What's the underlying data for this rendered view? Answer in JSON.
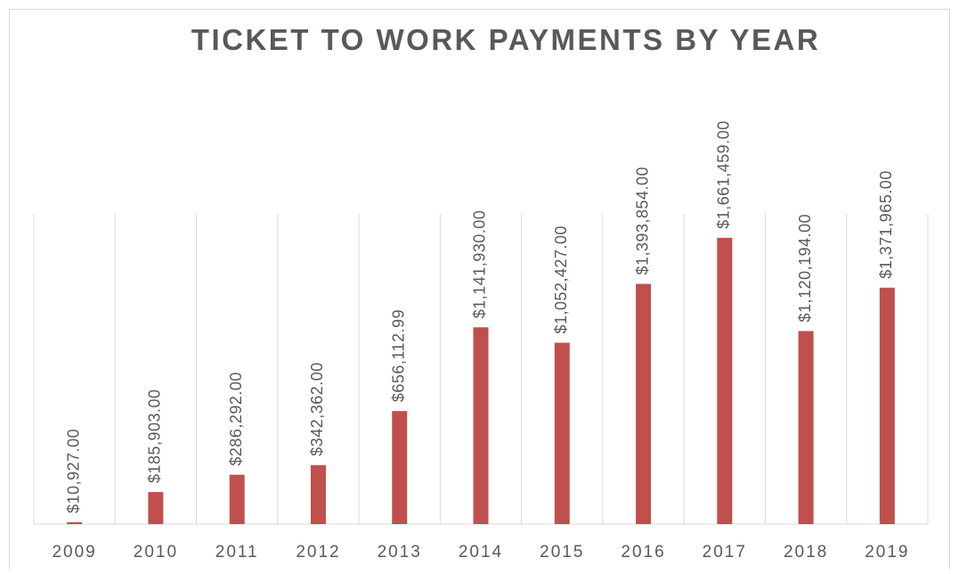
{
  "chart_data": {
    "type": "bar",
    "title": "TICKET TO WORK PAYMENTS BY YEAR",
    "categories": [
      "2009",
      "2010",
      "2011",
      "2012",
      "2013",
      "2014",
      "2015",
      "2016",
      "2017",
      "2018",
      "2019"
    ],
    "values": [
      10927,
      185903,
      286292,
      342362,
      656112.99,
      1141930,
      1052427,
      1393854,
      1661459,
      1120194,
      1371965
    ],
    "value_labels": [
      "$10,927.00",
      "$185,903.00",
      "$286,292.00",
      "$342,362.00",
      "$656,112.99",
      "$1,141,930.00",
      "$1,052,427.00",
      "$1,393,854.00",
      "$1,661,459.00",
      "$1,120,194.00",
      "$1,371,965.00"
    ],
    "color": "#c0504d",
    "ylim": [
      0,
      1800000
    ]
  }
}
